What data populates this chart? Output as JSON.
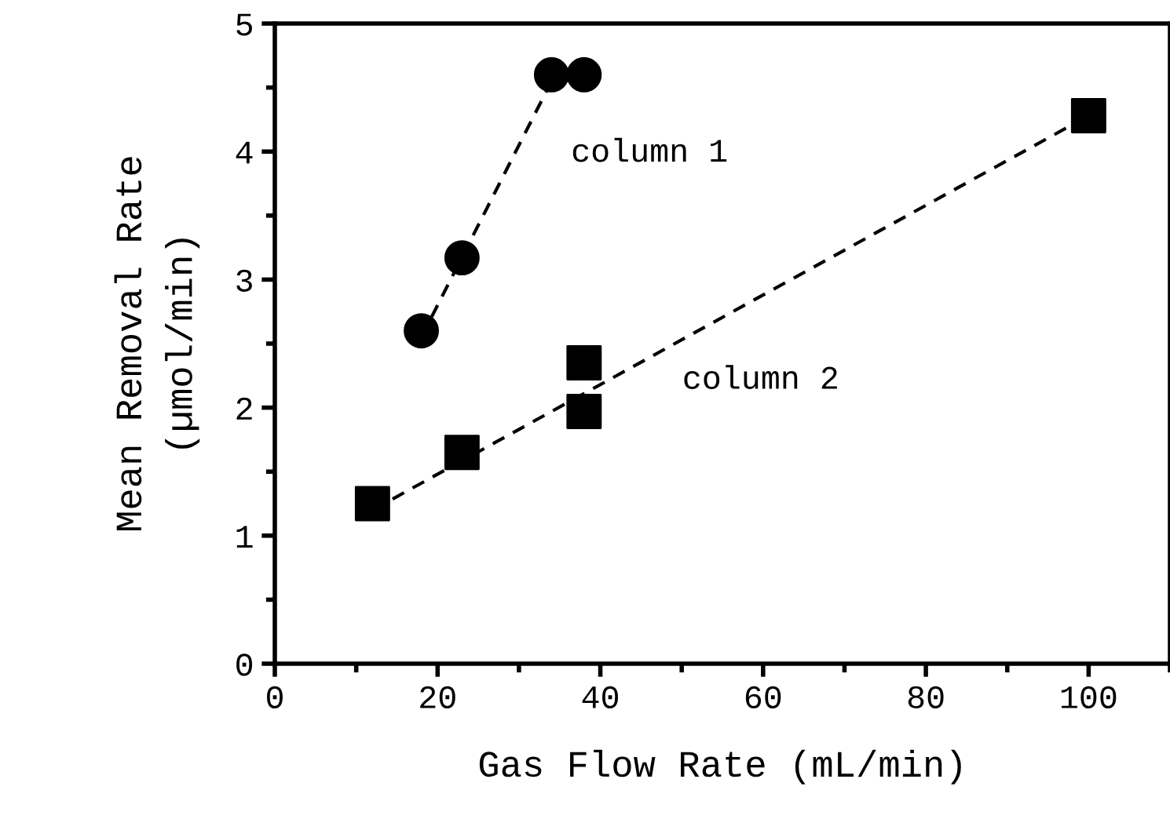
{
  "chart_data": {
    "type": "scatter",
    "xlabel": "Gas Flow Rate (mL/min)",
    "ylabel": "Mean Removal Rate\n(µmol/min)",
    "xlim": [
      0,
      110
    ],
    "ylim": [
      0,
      5
    ],
    "xticks": [
      0,
      20,
      40,
      60,
      80,
      100
    ],
    "yticks": [
      0,
      1,
      2,
      3,
      4,
      5
    ],
    "grid": false,
    "legend": false,
    "series": [
      {
        "name": "column 1",
        "color": "#000000",
        "marker": "circle",
        "x": [
          18,
          23,
          34,
          38
        ],
        "values": [
          2.6,
          3.17,
          4.6,
          4.6
        ]
      },
      {
        "name": "column 2",
        "color": "#000000",
        "marker": "square",
        "x": [
          12,
          23,
          38,
          38,
          100
        ],
        "values": [
          1.25,
          1.65,
          2.35,
          1.97,
          4.28
        ]
      },
      {
        "type": "line",
        "color": "#000000",
        "line_style": "dashed",
        "marker": "none",
        "x": [
          18,
          34
        ],
        "values": [
          2.55,
          4.55
        ]
      },
      {
        "type": "line",
        "color": "#000000",
        "line_style": "dashed",
        "marker": "none",
        "x": [
          12,
          100
        ],
        "values": [
          1.2,
          4.28
        ]
      }
    ]
  }
}
